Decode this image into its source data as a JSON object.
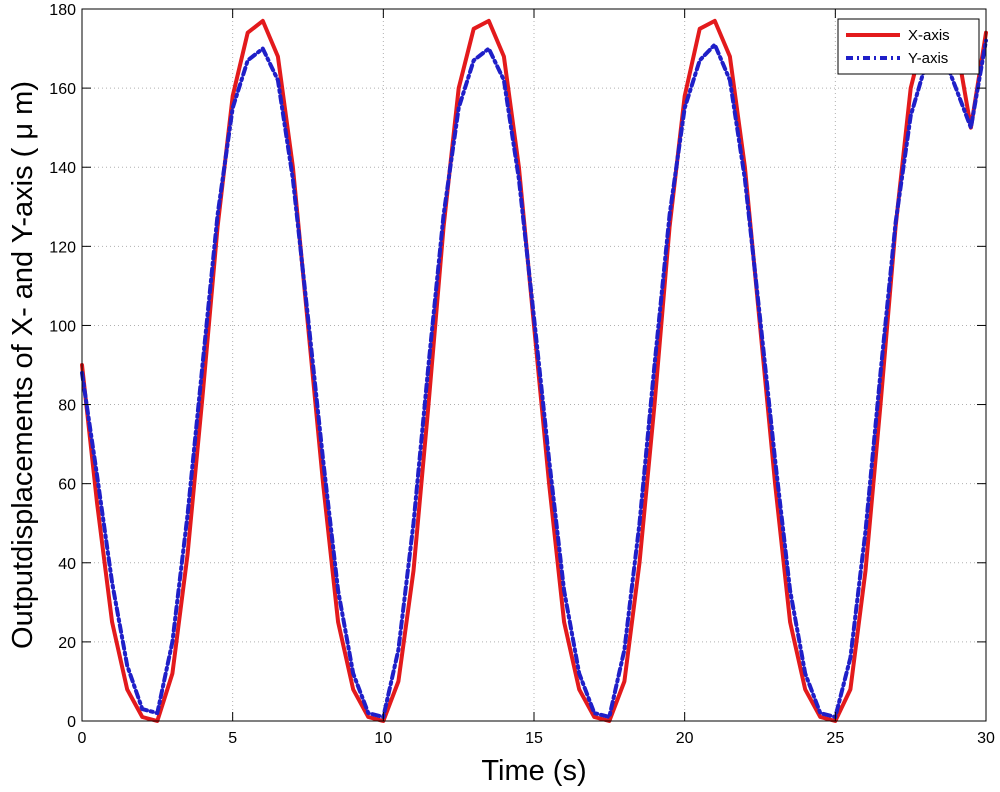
{
  "chart_data": {
    "type": "line",
    "title": "",
    "xlabel": "Time (s)",
    "ylabel": "Outputdisplacements of X- and Y-axis ( μ m)",
    "xlim": [
      0,
      30
    ],
    "ylim": [
      0,
      180
    ],
    "xticks": [
      "0",
      "5",
      "10",
      "15",
      "20",
      "25",
      "30"
    ],
    "yticks": [
      "0",
      "20",
      "40",
      "60",
      "80",
      "100",
      "120",
      "140",
      "160",
      "180"
    ],
    "grid": true,
    "legend_position": "top-right",
    "series": [
      {
        "name": "X-axis",
        "color": "#e31a1c",
        "style": "solid",
        "x": [
          0,
          0.5,
          1,
          1.5,
          2,
          2.5,
          3,
          3.5,
          4,
          4.5,
          5,
          5.5,
          6,
          6.5,
          7,
          7.5,
          8,
          8.5,
          9,
          9.5,
          10,
          10.5,
          11,
          11.5,
          12,
          12.5,
          13,
          13.5,
          14,
          14.5,
          15,
          15.5,
          16,
          16.5,
          17,
          17.5,
          18,
          18.5,
          19,
          19.5,
          20,
          20.5,
          21,
          21.5,
          22,
          22.5,
          23,
          23.5,
          24,
          24.5,
          25,
          25.5,
          26,
          26.5,
          27,
          27.5,
          28,
          28.5,
          29,
          29.5,
          30
        ],
        "values": [
          90,
          55,
          25,
          8,
          1,
          0,
          12,
          42,
          82,
          125,
          158,
          174,
          177,
          168,
          140,
          100,
          60,
          25,
          8,
          1,
          0,
          10,
          38,
          80,
          125,
          160,
          175,
          177,
          168,
          140,
          100,
          60,
          25,
          8,
          1,
          0,
          10,
          40,
          80,
          125,
          158,
          175,
          177,
          168,
          140,
          100,
          60,
          25,
          8,
          1,
          0,
          8,
          38,
          80,
          125,
          160,
          175,
          177,
          172,
          150,
          174
        ]
      },
      {
        "name": "Y-axis",
        "color": "#1f1fc8",
        "style": "dashdot",
        "x": [
          0,
          0.5,
          1,
          1.5,
          2,
          2.5,
          3,
          3.5,
          4,
          4.5,
          5,
          5.5,
          6,
          6.5,
          7,
          7.5,
          8,
          8.5,
          9,
          9.5,
          10,
          10.5,
          11,
          11.5,
          12,
          12.5,
          13,
          13.5,
          14,
          14.5,
          15,
          15.5,
          16,
          16.5,
          17,
          17.5,
          18,
          18.5,
          19,
          19.5,
          20,
          20.5,
          21,
          21.5,
          22,
          22.5,
          23,
          23.5,
          24,
          24.5,
          25,
          25.5,
          26,
          26.5,
          27,
          27.5,
          28,
          28.5,
          29,
          29.5,
          30
        ],
        "values": [
          88,
          62,
          35,
          14,
          3,
          2,
          20,
          52,
          90,
          128,
          155,
          167,
          170,
          162,
          137,
          102,
          66,
          33,
          12,
          2,
          1,
          18,
          50,
          90,
          128,
          155,
          167,
          170,
          162,
          137,
          102,
          66,
          33,
          12,
          2,
          1,
          18,
          50,
          90,
          128,
          155,
          167,
          171,
          162,
          137,
          102,
          66,
          33,
          12,
          2,
          1,
          16,
          48,
          88,
          126,
          153,
          166,
          170,
          160,
          150,
          172
        ]
      }
    ]
  }
}
